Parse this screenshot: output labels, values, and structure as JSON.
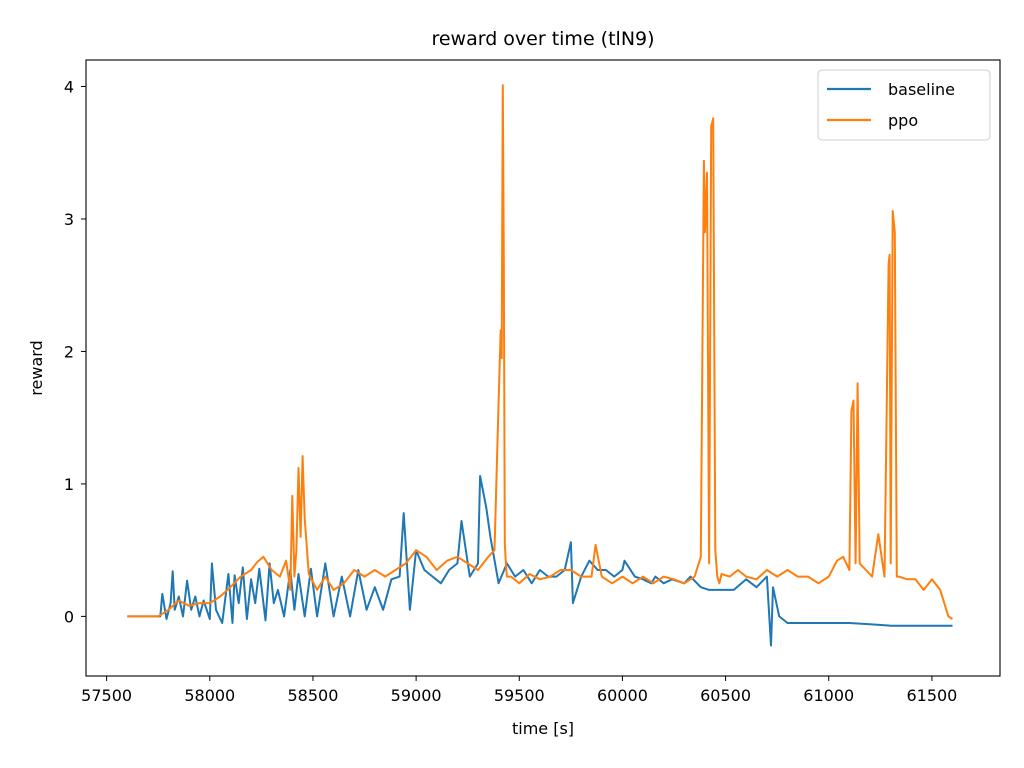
{
  "chart_data": {
    "type": "line",
    "title": "reward over time (tlN9)",
    "xlabel": "time [s]",
    "ylabel": "reward",
    "xlim": [
      57400,
      61830
    ],
    "ylim": [
      -0.45,
      4.2
    ],
    "xticks": [
      57500,
      58000,
      58500,
      59000,
      59500,
      60000,
      60500,
      61000,
      61500
    ],
    "yticks": [
      0,
      1,
      2,
      3,
      4
    ],
    "grid": false,
    "legend_position": "top-right",
    "series": [
      {
        "name": "baseline",
        "color": "#1f77b4",
        "x": [
          57600,
          57760,
          57770,
          57790,
          57810,
          57820,
          57830,
          57850,
          57870,
          57890,
          57910,
          57930,
          57950,
          57970,
          58000,
          58010,
          58030,
          58060,
          58090,
          58110,
          58120,
          58140,
          58160,
          58180,
          58200,
          58220,
          58240,
          58270,
          58290,
          58310,
          58330,
          58360,
          58390,
          58410,
          58430,
          58460,
          58490,
          58520,
          58560,
          58600,
          58640,
          58680,
          58720,
          58760,
          58800,
          58840,
          58880,
          58920,
          58940,
          58970,
          59000,
          59040,
          59080,
          59120,
          59160,
          59200,
          59220,
          59260,
          59300,
          59310,
          59340,
          59360,
          59400,
          59440,
          59480,
          59520,
          59560,
          59600,
          59640,
          59680,
          59720,
          59750,
          59760,
          59800,
          59840,
          59880,
          59920,
          59960,
          60000,
          60010,
          60060,
          60100,
          60140,
          60160,
          60200,
          60240,
          60300,
          60330,
          60380,
          60420,
          60480,
          60540,
          60600,
          60650,
          60700,
          60720,
          60730,
          60760,
          60800,
          60900,
          61000,
          61100,
          61200,
          61300,
          61400,
          61500,
          61600
        ],
        "values": [
          0.0,
          0.0,
          0.17,
          -0.02,
          0.1,
          0.34,
          0.05,
          0.15,
          0.0,
          0.27,
          0.05,
          0.15,
          0.0,
          0.12,
          -0.02,
          0.4,
          0.05,
          -0.05,
          0.32,
          -0.05,
          0.31,
          0.1,
          0.37,
          -0.02,
          0.28,
          0.1,
          0.36,
          -0.03,
          0.4,
          0.1,
          0.2,
          0.0,
          0.35,
          0.05,
          0.32,
          0.0,
          0.36,
          0.0,
          0.4,
          0.0,
          0.3,
          0.0,
          0.35,
          0.05,
          0.22,
          0.05,
          0.28,
          0.3,
          0.78,
          0.05,
          0.5,
          0.35,
          0.3,
          0.25,
          0.35,
          0.4,
          0.72,
          0.3,
          0.4,
          1.06,
          0.82,
          0.6,
          0.25,
          0.4,
          0.3,
          0.35,
          0.25,
          0.35,
          0.3,
          0.3,
          0.35,
          0.56,
          0.1,
          0.3,
          0.42,
          0.35,
          0.35,
          0.3,
          0.35,
          0.42,
          0.3,
          0.28,
          0.25,
          0.3,
          0.25,
          0.28,
          0.25,
          0.3,
          0.22,
          0.2,
          0.2,
          0.2,
          0.28,
          0.22,
          0.3,
          -0.22,
          0.22,
          0.0,
          -0.05,
          -0.05,
          -0.05,
          -0.05,
          -0.06,
          -0.07,
          -0.07,
          -0.07,
          -0.07
        ]
      },
      {
        "name": "ppo",
        "color": "#ff7f0e",
        "x": [
          57600,
          57750,
          57800,
          57850,
          57900,
          57950,
          58000,
          58050,
          58100,
          58150,
          58200,
          58230,
          58260,
          58300,
          58340,
          58370,
          58390,
          58400,
          58410,
          58420,
          58430,
          58440,
          58450,
          58460,
          58480,
          58520,
          58560,
          58600,
          58650,
          58700,
          58750,
          58800,
          58850,
          58900,
          58950,
          59000,
          59050,
          59100,
          59150,
          59200,
          59250,
          59300,
          59350,
          59380,
          59400,
          59410,
          59415,
          59420,
          59425,
          59430,
          59435,
          59440,
          59460,
          59500,
          59550,
          59600,
          59650,
          59700,
          59750,
          59800,
          59850,
          59870,
          59900,
          59950,
          60000,
          60050,
          60100,
          60150,
          60200,
          60250,
          60300,
          60350,
          60380,
          60395,
          60400,
          60410,
          60420,
          60430,
          60440,
          60450,
          60460,
          60470,
          60480,
          60520,
          60560,
          60600,
          60650,
          60700,
          60750,
          60800,
          60850,
          60900,
          60950,
          61000,
          61040,
          61070,
          61100,
          61110,
          61120,
          61130,
          61140,
          61150,
          61180,
          61210,
          61240,
          61270,
          61290,
          61295,
          61300,
          61310,
          61320,
          61330,
          61340,
          61380,
          61420,
          61460,
          61500,
          61540,
          61580,
          61600
        ],
        "values": [
          0.0,
          0.0,
          0.05,
          0.12,
          0.08,
          0.1,
          0.1,
          0.15,
          0.22,
          0.3,
          0.35,
          0.41,
          0.45,
          0.35,
          0.3,
          0.42,
          0.2,
          0.91,
          0.3,
          0.5,
          1.12,
          0.6,
          1.21,
          0.74,
          0.32,
          0.2,
          0.3,
          0.2,
          0.25,
          0.35,
          0.3,
          0.35,
          0.3,
          0.35,
          0.4,
          0.5,
          0.45,
          0.35,
          0.42,
          0.45,
          0.4,
          0.35,
          0.45,
          0.5,
          1.62,
          2.16,
          1.95,
          4.01,
          2.7,
          0.55,
          0.4,
          0.3,
          0.3,
          0.25,
          0.32,
          0.28,
          0.3,
          0.35,
          0.35,
          0.3,
          0.3,
          0.54,
          0.3,
          0.25,
          0.3,
          0.25,
          0.3,
          0.25,
          0.3,
          0.28,
          0.25,
          0.3,
          0.45,
          3.44,
          2.9,
          3.35,
          0.4,
          3.7,
          3.76,
          0.5,
          0.3,
          0.25,
          0.32,
          0.3,
          0.35,
          0.3,
          0.28,
          0.35,
          0.3,
          0.35,
          0.3,
          0.3,
          0.25,
          0.3,
          0.42,
          0.45,
          0.35,
          1.55,
          1.63,
          0.4,
          1.76,
          0.4,
          0.35,
          0.3,
          0.62,
          0.3,
          2.66,
          2.73,
          0.4,
          3.06,
          2.9,
          0.3,
          0.3,
          0.28,
          0.28,
          0.2,
          0.28,
          0.2,
          0.0,
          -0.02
        ]
      }
    ]
  }
}
